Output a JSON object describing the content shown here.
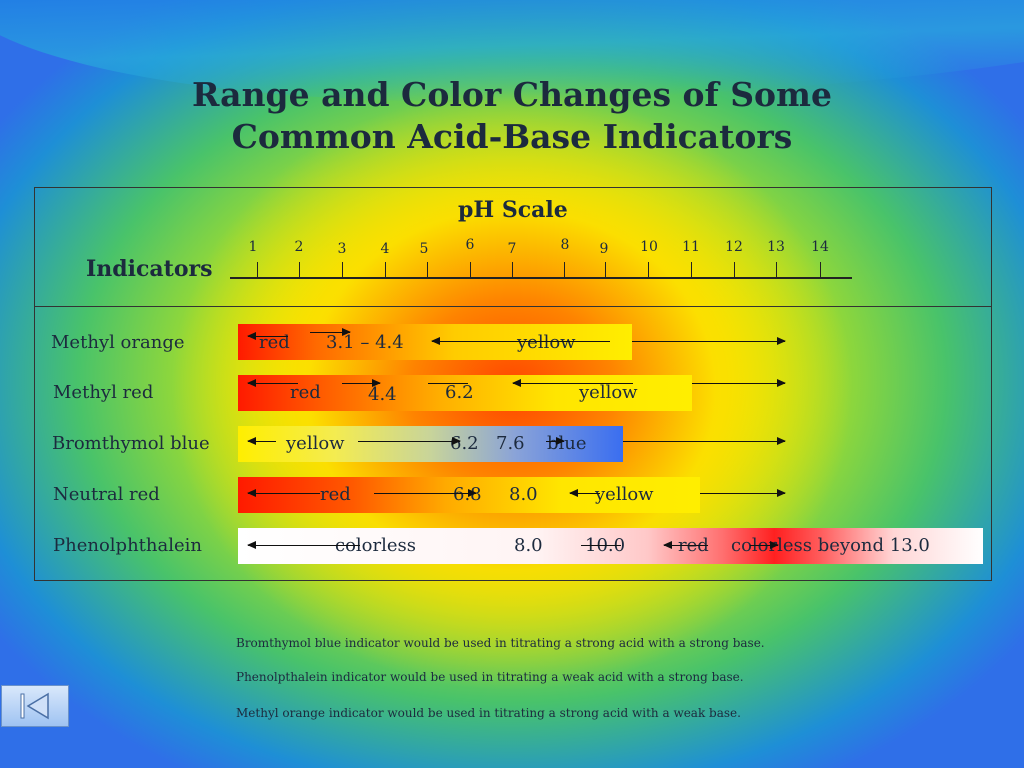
{
  "title": {
    "line1": "Range and Color Changes of Some",
    "line2": "Common Acid-Base Indicators"
  },
  "header": {
    "ph_scale": "pH Scale",
    "indicators": "Indicators",
    "ticks": [
      "1",
      "2",
      "3",
      "4",
      "5",
      "6",
      "7",
      "8",
      "9",
      "10",
      "11",
      "12",
      "13",
      "14"
    ]
  },
  "rows": [
    {
      "name": "Methyl orange",
      "labels": [
        "red",
        "3.1 – 4.4",
        "yellow"
      ]
    },
    {
      "name": "Methyl red",
      "labels": [
        "red",
        "4.4",
        "6.2",
        "yellow"
      ]
    },
    {
      "name": "Bromthymol blue",
      "labels": [
        "yellow",
        "6.2",
        "7.6",
        "blue"
      ]
    },
    {
      "name": "Neutral red",
      "labels": [
        "red",
        "6.8",
        "8.0",
        "yellow"
      ]
    },
    {
      "name": "Phenolphthalein",
      "labels": [
        "colorless",
        "8.0",
        "10.0",
        "red",
        "colorless beyond 13.0"
      ]
    }
  ],
  "notes": [
    "Bromthymol blue indicator would be used in titrating a strong acid with a strong base.",
    "Phenolpthalein indicator would be used in titrating a weak acid with a strong base.",
    "Methyl orange indicator would be used in titrating a strong acid with a weak base."
  ],
  "nav": {
    "icon": "skip-to-start-icon"
  }
}
